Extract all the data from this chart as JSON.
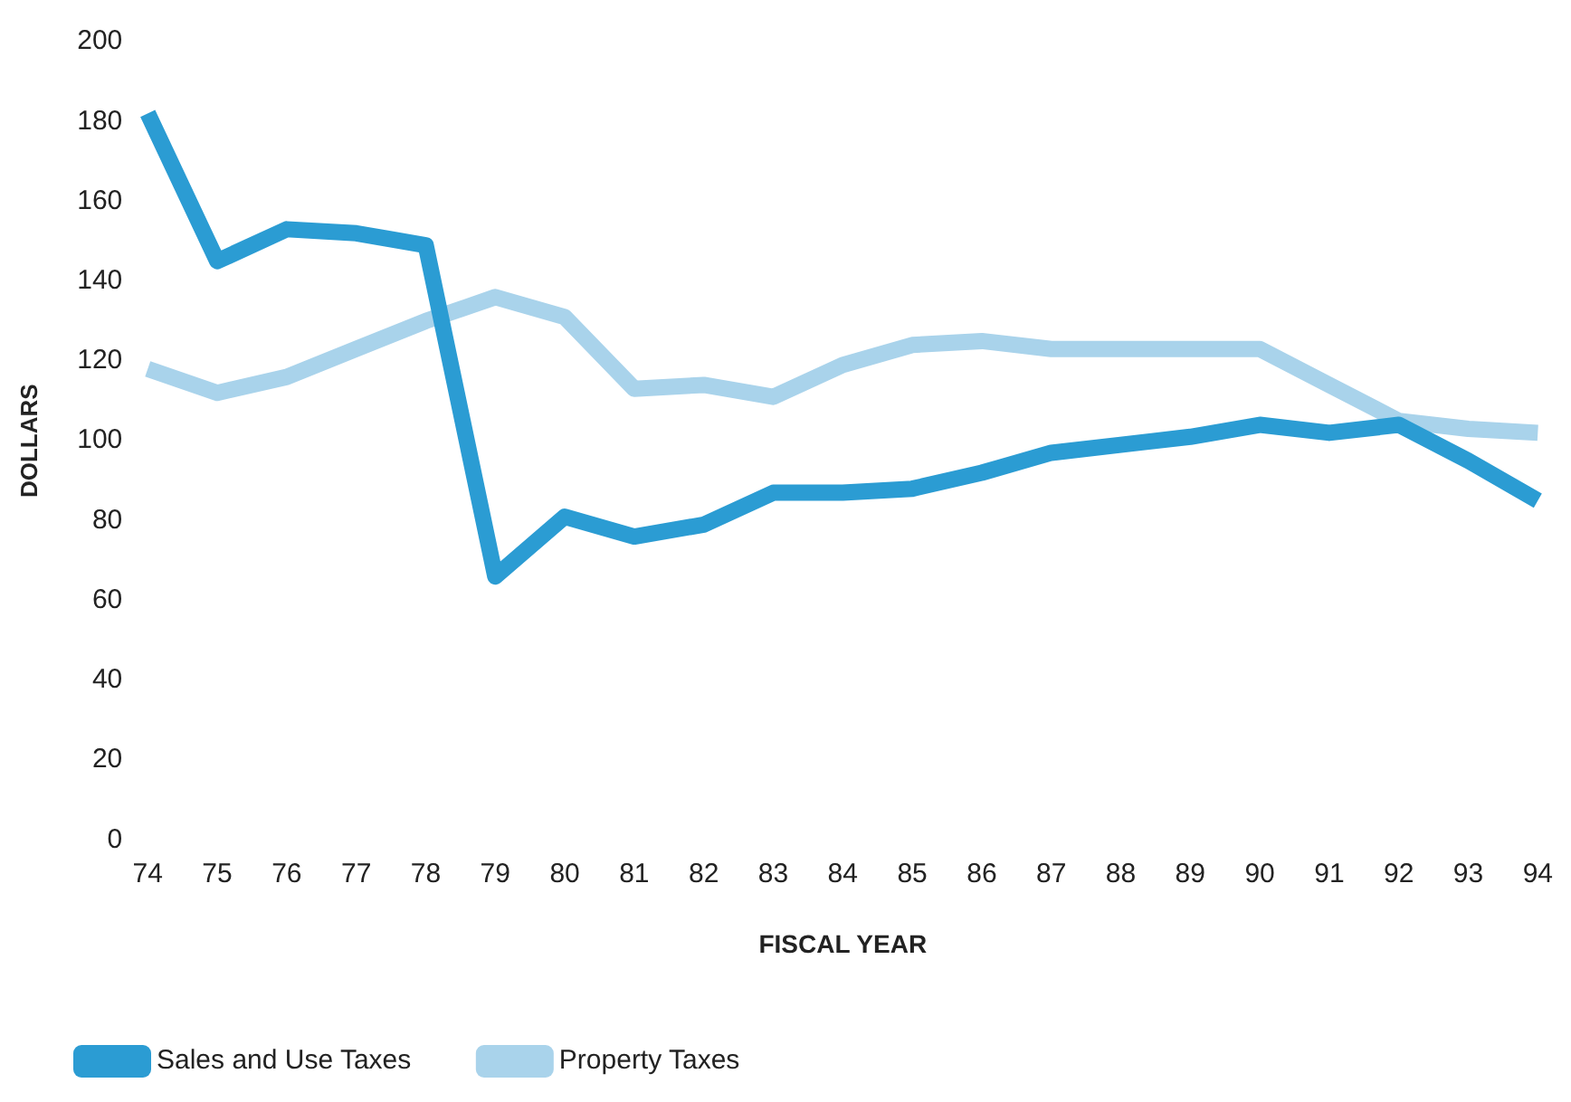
{
  "chart_data": {
    "type": "line",
    "xlabel": "FISCAL YEAR",
    "ylabel": "DOLLARS",
    "categories": [
      "74",
      "75",
      "76",
      "77",
      "78",
      "79",
      "80",
      "81",
      "82",
      "83",
      "84",
      "85",
      "86",
      "87",
      "88",
      "89",
      "90",
      "91",
      "92",
      "93",
      "94"
    ],
    "series": [
      {
        "name": "Sales and Use Taxes",
        "color": "#2b9cd3",
        "values": [
          182,
          145,
          153,
          152,
          149,
          66,
          81,
          76,
          79,
          87,
          87,
          88,
          92,
          97,
          99,
          101,
          104,
          102,
          104,
          95,
          85
        ]
      },
      {
        "name": "Property Taxes",
        "color": "#a9d3eb",
        "values": [
          118,
          112,
          116,
          123,
          130,
          136,
          131,
          113,
          114,
          111,
          119,
          124,
          125,
          123,
          123,
          123,
          123,
          114,
          105,
          103,
          102
        ]
      }
    ],
    "ylim": [
      0,
      200
    ],
    "yticks": [
      0,
      20,
      40,
      60,
      80,
      100,
      120,
      140,
      160,
      180,
      200
    ],
    "grid": false,
    "legend": "bottom left",
    "marker": "none",
    "line_style": "solid"
  }
}
